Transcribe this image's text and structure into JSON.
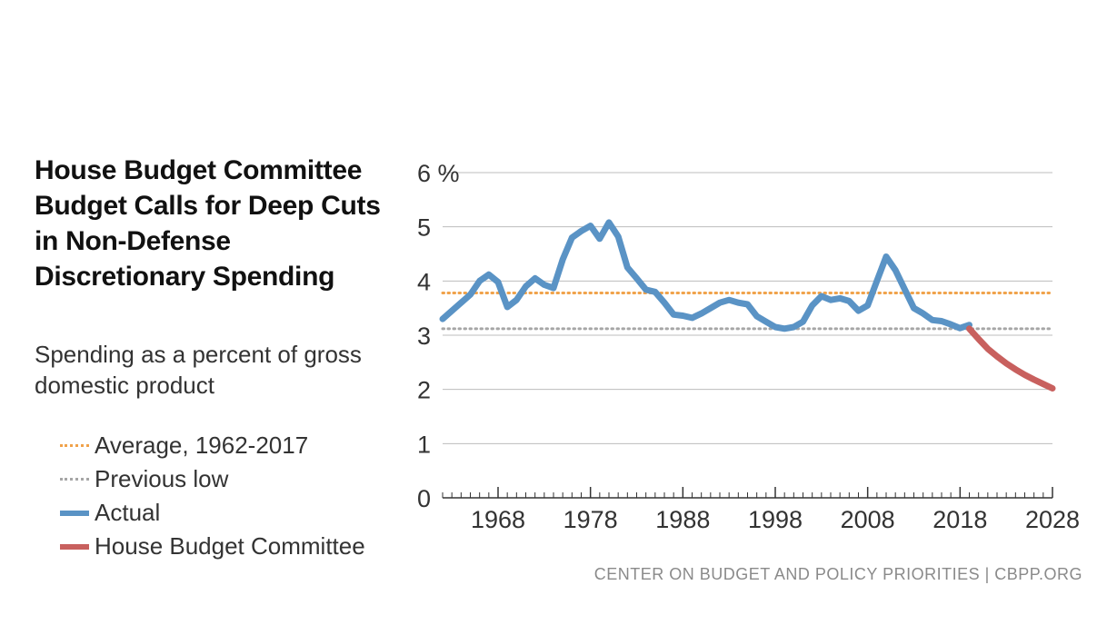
{
  "title": "House Budget Committee Budget Calls for Deep Cuts in Non-Defense Discretionary Spending",
  "subtitle": "Spending as a percent of gross domestic product",
  "source": "CENTER ON BUDGET AND POLICY PRIORITIES | CBPP.ORG",
  "legend": [
    {
      "label": "Average, 1962-2017",
      "style": "dotted",
      "color": "#f0a24a"
    },
    {
      "label": "Previous low",
      "style": "dotted",
      "color": "#a6a6a6"
    },
    {
      "label": "Actual",
      "style": "solid",
      "color": "#5a93c5"
    },
    {
      "label": "House Budget Committee",
      "style": "solid",
      "color": "#c8605e"
    }
  ],
  "chart_data": {
    "type": "line",
    "ylabel": "%",
    "ylim": [
      0,
      6
    ],
    "yticks": [
      0,
      1,
      2,
      3,
      4,
      5,
      6
    ],
    "ytick_labels": [
      "0",
      "1",
      "2",
      "3",
      "4",
      "5",
      "6 %"
    ],
    "xlim": [
      1962,
      2028
    ],
    "xticks": [
      1968,
      1978,
      1988,
      1998,
      2008,
      2018,
      2028
    ],
    "reference_lines": [
      {
        "name": "Average, 1962-2017",
        "value": 3.78,
        "color": "#f0a24a"
      },
      {
        "name": "Previous low",
        "value": 3.12,
        "color": "#a6a6a6"
      }
    ],
    "series": [
      {
        "name": "Actual",
        "color": "#5a93c5",
        "x": [
          1962,
          1963,
          1964,
          1965,
          1966,
          1967,
          1968,
          1969,
          1970,
          1971,
          1972,
          1973,
          1974,
          1975,
          1976,
          1977,
          1978,
          1979,
          1980,
          1981,
          1982,
          1983,
          1984,
          1985,
          1986,
          1987,
          1988,
          1989,
          1990,
          1991,
          1992,
          1993,
          1994,
          1995,
          1996,
          1997,
          1998,
          1999,
          2000,
          2001,
          2002,
          2003,
          2004,
          2005,
          2006,
          2007,
          2008,
          2009,
          2010,
          2011,
          2012,
          2013,
          2014,
          2015,
          2016,
          2017,
          2018,
          2019
        ],
        "values": [
          3.3,
          3.45,
          3.6,
          3.75,
          4.0,
          4.12,
          3.98,
          3.52,
          3.65,
          3.9,
          4.05,
          3.93,
          3.87,
          4.4,
          4.8,
          4.92,
          5.02,
          4.78,
          5.08,
          4.82,
          4.25,
          4.05,
          3.84,
          3.8,
          3.6,
          3.38,
          3.36,
          3.32,
          3.4,
          3.5,
          3.6,
          3.65,
          3.6,
          3.57,
          3.35,
          3.25,
          3.15,
          3.12,
          3.15,
          3.25,
          3.55,
          3.72,
          3.65,
          3.68,
          3.63,
          3.45,
          3.55,
          4.0,
          4.45,
          4.2,
          3.85,
          3.5,
          3.4,
          3.28,
          3.26,
          3.2,
          3.13,
          3.19
        ]
      },
      {
        "name": "House Budget Committee",
        "color": "#c8605e",
        "x": [
          2019,
          2020,
          2021,
          2022,
          2023,
          2024,
          2025,
          2026,
          2027,
          2028
        ],
        "values": [
          3.12,
          2.93,
          2.75,
          2.61,
          2.48,
          2.37,
          2.27,
          2.18,
          2.1,
          2.02
        ]
      }
    ]
  }
}
